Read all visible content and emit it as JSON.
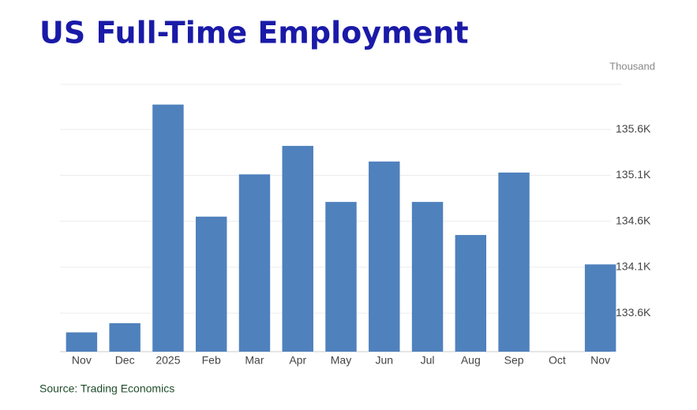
{
  "chart_data": {
    "type": "bar",
    "title": "US Full-Time Employment",
    "unit": "Thousand",
    "source": "Source: Trading Economics",
    "categories": [
      "Nov",
      "Dec",
      "2025",
      "Feb",
      "Mar",
      "Apr",
      "May",
      "Jun",
      "Jul",
      "Aug",
      "Sep",
      "Oct",
      "Nov"
    ],
    "values": [
      133.39,
      133.49,
      135.87,
      134.65,
      135.11,
      135.42,
      134.81,
      135.25,
      134.81,
      134.45,
      135.13,
      null,
      134.13
    ],
    "color": "#4f81bd",
    "ylim": [
      133.18,
      136.09
    ],
    "yticks": [
      {
        "value": 133.6,
        "label": "133.6K"
      },
      {
        "value": 134.1,
        "label": "134.1K"
      },
      {
        "value": 134.6,
        "label": "134.6K"
      },
      {
        "value": 135.1,
        "label": "135.1K"
      },
      {
        "value": 135.6,
        "label": "135.6K"
      }
    ],
    "grid": true
  }
}
